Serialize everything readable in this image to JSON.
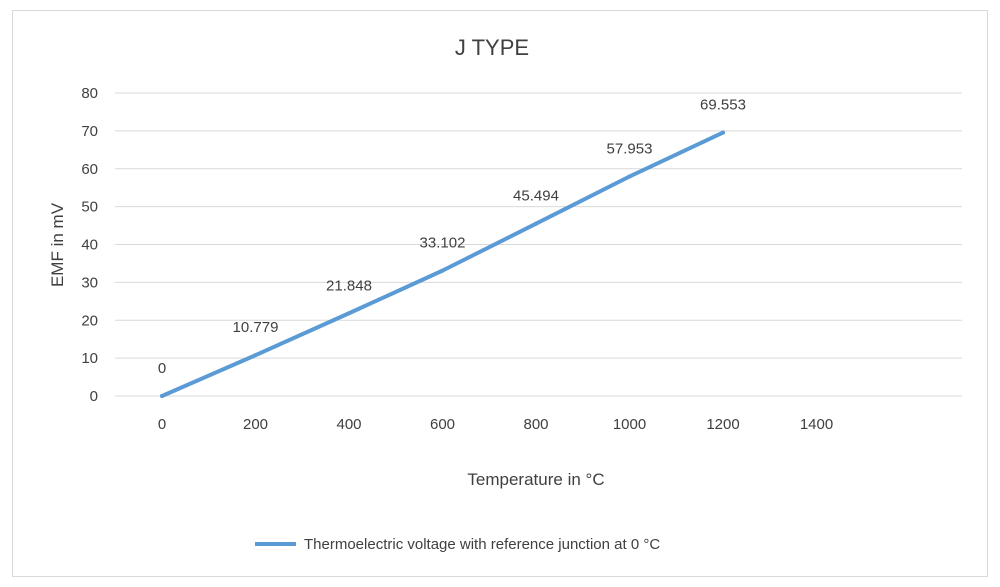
{
  "chart_data": {
    "type": "line",
    "title": "J TYPE",
    "xlabel": "Temperature in °C",
    "ylabel": "EMF in mV",
    "xlim": [
      0,
      1400
    ],
    "ylim": [
      0,
      80
    ],
    "x_ticks": [
      0,
      200,
      400,
      600,
      800,
      1000,
      1200,
      1400
    ],
    "y_ticks": [
      0,
      10,
      20,
      30,
      40,
      50,
      60,
      70,
      80
    ],
    "grid": true,
    "legend_position": "bottom",
    "series": [
      {
        "name": "Thermoelectric voltage with reference junction at 0 °C",
        "color": "#5b9bd5",
        "x": [
          0,
          200,
          400,
          600,
          800,
          1000,
          1200
        ],
        "y": [
          0,
          10.779,
          21.848,
          33.102,
          45.494,
          57.953,
          69.553
        ],
        "data_labels": [
          "0",
          "10.779",
          "21.848",
          "33.102",
          "45.494",
          "57.953",
          "69.553"
        ]
      }
    ]
  }
}
